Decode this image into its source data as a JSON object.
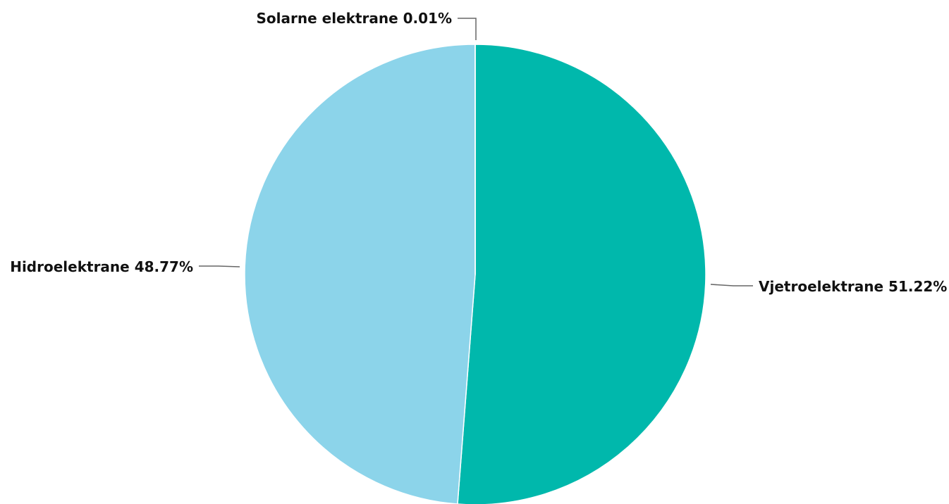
{
  "chart_data": {
    "type": "pie",
    "slices": [
      {
        "name": "Vjetroelektrane",
        "value": 51.22,
        "label": "Vjetroelektrane 51.22%",
        "color": "#00b8ac"
      },
      {
        "name": "Hidroelektrane",
        "value": 48.77,
        "label": "Hidroelektrane 48.77%",
        "color": "#8cd4ea"
      },
      {
        "name": "Solarne elektrane",
        "value": 0.01,
        "label": "Solarne elektrane 0.01%",
        "color": "#f2c300"
      }
    ],
    "start_angle": "top, clockwise",
    "legend": "none",
    "labels": "outside with leader lines"
  }
}
